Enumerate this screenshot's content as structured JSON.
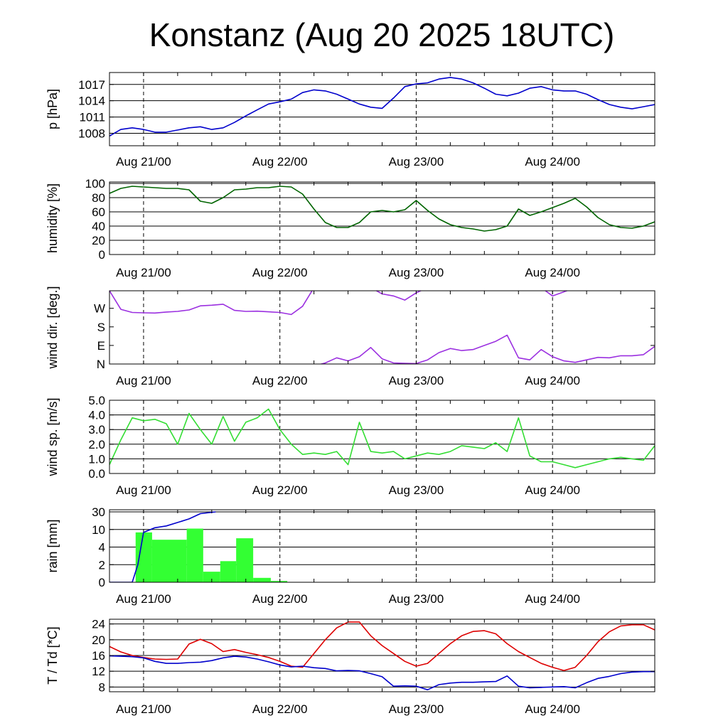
{
  "title": "Konstanz (Aug 20 2025 18UTC)",
  "chart_data": [
    {
      "id": "pressure",
      "type": "line",
      "ylabel": "p [hPa]",
      "ylim": [
        1005.7,
        1019.2
      ],
      "yticks": [
        1008,
        1011,
        1014,
        1017
      ],
      "ytick_labels": [
        "1008",
        "1011",
        "1014",
        "1017"
      ],
      "grid_y": [
        1008,
        1011,
        1014,
        1017
      ],
      "x_hours": [
        0,
        2,
        4,
        6,
        8,
        10,
        12,
        14,
        16,
        18,
        20,
        22,
        24,
        26,
        28,
        30,
        32,
        34,
        36,
        38,
        40,
        42,
        44,
        46,
        48,
        50,
        52,
        54,
        56,
        58,
        60,
        62,
        64,
        66,
        68,
        70,
        72,
        74,
        76,
        78,
        80,
        82,
        84,
        86,
        88,
        90,
        92,
        94,
        96
      ],
      "series": [
        {
          "color": "#0000cc",
          "values": [
            1007.5,
            1008.7,
            1009.0,
            1008.7,
            1008.2,
            1008.2,
            1008.6,
            1009.0,
            1009.2,
            1008.7,
            1009.0,
            1010.0,
            1011.2,
            1012.3,
            1013.4,
            1013.8,
            1014.3,
            1015.5,
            1016.0,
            1015.8,
            1015.2,
            1014.3,
            1013.4,
            1012.8,
            1012.6,
            1014.5,
            1016.6,
            1017.1,
            1017.3,
            1018.0,
            1018.3,
            1018.0,
            1017.3,
            1016.3,
            1015.2,
            1014.9,
            1015.4,
            1016.3,
            1016.6,
            1016.0,
            1015.8,
            1015.8,
            1015.2,
            1014.2,
            1013.3,
            1012.8,
            1012.5,
            1012.9,
            1013.3
          ]
        }
      ]
    },
    {
      "id": "humidity",
      "type": "line",
      "ylabel": "humidity [%]",
      "ylim": [
        0,
        102
      ],
      "yticks": [
        0,
        20,
        40,
        60,
        80,
        100
      ],
      "ytick_labels": [
        "0",
        "20",
        "40",
        "60",
        "80",
        "100"
      ],
      "grid_y": [
        20,
        40,
        60,
        80,
        100
      ],
      "x_hours": [
        0,
        2,
        4,
        6,
        8,
        10,
        12,
        14,
        16,
        18,
        20,
        22,
        24,
        26,
        28,
        30,
        32,
        34,
        36,
        38,
        40,
        42,
        44,
        46,
        48,
        50,
        52,
        54,
        56,
        58,
        60,
        62,
        64,
        66,
        68,
        70,
        72,
        74,
        76,
        78,
        80,
        82,
        84,
        86,
        88,
        90,
        92,
        94,
        96
      ],
      "series": [
        {
          "color": "#006400",
          "values": [
            86,
            93,
            96,
            95,
            94,
            93,
            93,
            91,
            75,
            72,
            80,
            91,
            92,
            94,
            94,
            96,
            95,
            85,
            64,
            45,
            38,
            38,
            45,
            60,
            62,
            60,
            63,
            76,
            62,
            50,
            42,
            38,
            36,
            33,
            35,
            40,
            64,
            55,
            60,
            66,
            72,
            79,
            67,
            52,
            42,
            38,
            37,
            40,
            46
          ]
        }
      ]
    },
    {
      "id": "wind_direction",
      "type": "line",
      "ylabel": "wind dir. [deg.]",
      "ylim": [
        0,
        355
      ],
      "yticks": [
        0,
        90,
        180,
        270
      ],
      "ytick_labels": [
        "N",
        "E",
        "S",
        "W"
      ],
      "grid_y": [],
      "x_hours": [
        0,
        2,
        4,
        6,
        8,
        10,
        12,
        14,
        16,
        18,
        20,
        22,
        24,
        26,
        28,
        30,
        32,
        34,
        36,
        38,
        40,
        42,
        44,
        46,
        48,
        50,
        52,
        54,
        56,
        58,
        60,
        62,
        64,
        66,
        68,
        70,
        72,
        74,
        76,
        78,
        80,
        82,
        84,
        86,
        88,
        90,
        92,
        94,
        96
      ],
      "series": [
        {
          "color": "#9b30e0",
          "values": [
            355,
            265,
            250,
            248,
            247,
            252,
            255,
            262,
            282,
            285,
            290,
            260,
            255,
            256,
            253,
            250,
            240,
            280,
            370,
            370,
            370,
            370,
            370,
            370,
            370,
            370,
            370,
            370,
            370,
            370,
            370,
            370,
            370,
            370,
            370,
            370,
            370,
            370,
            370,
            370,
            370,
            370,
            370,
            370,
            370,
            370,
            370,
            370,
            370
          ]
        },
        {
          "color": "#9b30e0",
          "values": [
            -10,
            -10,
            -10,
            -10,
            -10,
            -10,
            -10,
            -10,
            -10,
            -10,
            -10,
            -10,
            -10,
            -10,
            -10,
            -10,
            -10,
            -10,
            -10,
            5,
            30,
            15,
            35,
            80,
            25,
            5,
            3,
            2,
            20,
            55,
            75,
            65,
            70,
            90,
            110,
            140,
            30,
            20,
            70,
            35,
            15,
            8,
            20,
            32,
            30,
            40,
            40,
            45,
            85
          ]
        },
        {
          "color": "#9b30e0",
          "values": [
            370,
            370,
            370,
            370,
            370,
            370,
            370,
            370,
            370,
            370,
            370,
            370,
            370,
            370,
            370,
            370,
            370,
            370,
            370,
            370,
            370,
            370,
            370,
            370,
            340,
            330,
            310,
            345,
            370,
            370,
            370,
            370,
            370,
            370,
            370,
            370,
            370,
            370,
            370,
            330,
            350,
            370,
            370,
            370,
            370,
            370,
            370,
            370,
            370
          ]
        }
      ]
    },
    {
      "id": "wind_speed",
      "type": "line",
      "ylabel": "wind sp. [m/s]",
      "ylim": [
        0,
        5.0
      ],
      "yticks": [
        0.0,
        1.0,
        2.0,
        3.0,
        4.0,
        5.0
      ],
      "ytick_labels": [
        "0.0",
        "1.0",
        "2.0",
        "3.0",
        "4.0",
        "5.0"
      ],
      "grid_y": [
        1.0,
        2.0,
        3.0,
        4.0,
        5.0
      ],
      "x_hours": [
        0,
        2,
        4,
        6,
        8,
        10,
        12,
        14,
        16,
        18,
        20,
        22,
        24,
        26,
        28,
        30,
        32,
        34,
        36,
        38,
        40,
        42,
        44,
        46,
        48,
        50,
        52,
        54,
        56,
        58,
        60,
        62,
        64,
        66,
        68,
        70,
        72,
        74,
        76,
        78,
        80,
        82,
        84,
        86,
        88,
        90,
        92,
        94,
        96
      ],
      "series": [
        {
          "color": "#33dd33",
          "values": [
            0.6,
            2.3,
            3.8,
            3.6,
            3.7,
            3.4,
            2.0,
            4.1,
            3.0,
            2.0,
            3.9,
            2.2,
            3.5,
            3.8,
            4.4,
            3.0,
            2.0,
            1.3,
            1.4,
            1.3,
            1.5,
            0.6,
            3.5,
            1.5,
            1.4,
            1.5,
            1.0,
            1.2,
            1.4,
            1.3,
            1.5,
            1.9,
            1.8,
            1.7,
            2.1,
            1.5,
            3.8,
            1.2,
            0.8,
            0.8,
            0.6,
            0.4,
            0.6,
            0.8,
            1.0,
            1.1,
            1.0,
            0.9,
            1.9
          ]
        }
      ]
    },
    {
      "id": "rain",
      "type": "bar",
      "ylabel": "rain [mm]",
      "yticks": [
        0,
        2,
        4,
        10,
        30
      ],
      "ytick_labels": [
        "0",
        "2",
        "4",
        "10",
        "30"
      ],
      "grid_y": [
        2,
        4,
        10,
        30
      ],
      "scale": "piecewise (labels 0, 2, 4, 10, 30 equally spaced)",
      "bars": {
        "color": "#33ff33",
        "bins": [
          [
            4.6,
            7.5
          ],
          [
            7.5,
            13.6
          ],
          [
            13.6,
            16.5
          ],
          [
            16.5,
            19.5
          ],
          [
            19.5,
            22.3
          ],
          [
            22.3,
            25.3
          ],
          [
            25.3,
            28.4
          ],
          [
            28.4,
            31.3
          ]
        ],
        "values": [
          9,
          6.5,
          11,
          1.2,
          2.4,
          7,
          0.5,
          0.15
        ]
      },
      "series": [
        {
          "color": "#0000cc",
          "name": "",
          "x_hours": [
            0,
            4,
            5,
            6,
            8,
            10,
            12,
            14,
            16,
            18.7
          ],
          "values": [
            0,
            0,
            2,
            9,
            12,
            14,
            18,
            22,
            28,
            30
          ]
        }
      ]
    },
    {
      "id": "temperature",
      "type": "line",
      "ylabel": "T / Td [*C]",
      "ylim": [
        6.8,
        25.2
      ],
      "yticks": [
        8,
        12,
        16,
        20,
        24
      ],
      "ytick_labels": [
        "8",
        "12",
        "16",
        "20",
        "24"
      ],
      "grid_y": [
        8,
        12,
        16,
        20,
        24
      ],
      "x_hours": [
        0,
        2,
        4,
        6,
        8,
        10,
        12,
        14,
        16,
        18,
        20,
        22,
        24,
        26,
        28,
        30,
        32,
        34,
        36,
        38,
        40,
        42,
        44,
        46,
        48,
        50,
        52,
        54,
        56,
        58,
        60,
        62,
        64,
        66,
        68,
        70,
        72,
        74,
        76,
        78,
        80,
        82,
        84,
        86,
        88,
        90,
        92,
        94,
        96
      ],
      "series": [
        {
          "color": "#dd0000",
          "values": [
            18.3,
            16.9,
            16.0,
            15.5,
            15.1,
            15.0,
            15.1,
            18.9,
            20.1,
            19.0,
            17.0,
            17.5,
            16.8,
            16.2,
            15.5,
            14.5,
            13.3,
            13.0,
            16.5,
            20.0,
            23.0,
            24.5,
            24.5,
            21.0,
            18.5,
            16.5,
            14.5,
            13.3,
            14.0,
            16.5,
            19.0,
            21.0,
            22.1,
            22.3,
            21.5,
            19.0,
            17.0,
            15.5,
            14.0,
            13.0,
            12.2,
            13.0,
            16.0,
            19.5,
            22.0,
            23.5,
            23.8,
            23.8,
            22.5
          ]
        },
        {
          "color": "#0000cc",
          "values": [
            15.9,
            15.8,
            15.7,
            15.4,
            14.5,
            14.0,
            14.0,
            14.2,
            14.3,
            14.7,
            15.4,
            15.8,
            15.6,
            15.1,
            14.4,
            13.6,
            13.1,
            13.3,
            12.9,
            12.7,
            12.1,
            12.2,
            12.1,
            11.4,
            10.6,
            8.2,
            8.3,
            8.2,
            7.3,
            8.6,
            9.0,
            9.2,
            9.2,
            9.3,
            9.4,
            10.8,
            8.2,
            7.8,
            7.9,
            8.0,
            8.1,
            7.8,
            9.1,
            10.2,
            10.7,
            11.4,
            11.8,
            11.9,
            11.9
          ]
        }
      ]
    }
  ],
  "time_axis": {
    "start_label": "Aug 20 2025 18UTC",
    "range_hours": [
      0,
      96
    ],
    "midnights_hours": [
      6,
      30,
      54,
      78
    ],
    "labels": [
      "Aug 21/00",
      "Aug 22/00",
      "Aug 23/00",
      "Aug 24/00"
    ]
  },
  "colors": {
    "pressure": "#0000cc",
    "humidity": "#006400",
    "wind_direction": "#9b30e0",
    "wind_speed": "#33dd33",
    "rain_bars": "#33ff33",
    "rain_accumulated": "#0000cc",
    "temperature": "#dd0000",
    "dewpoint": "#0000cc"
  }
}
